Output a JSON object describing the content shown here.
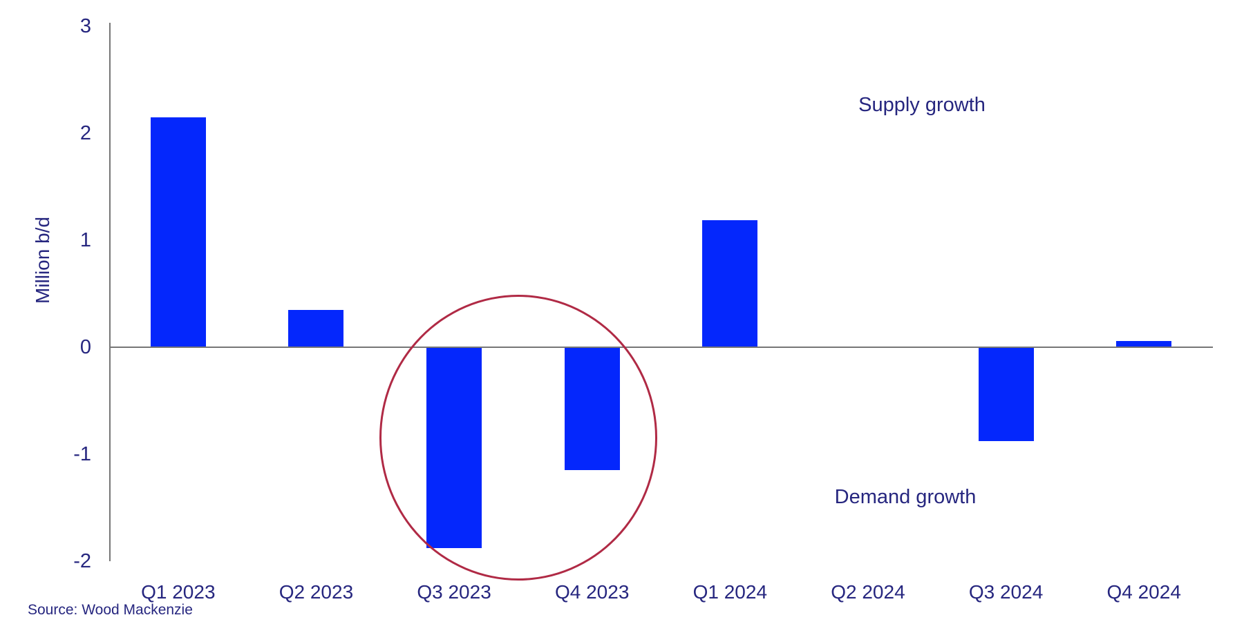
{
  "chart_data": {
    "type": "bar",
    "categories": [
      "Q1 2023",
      "Q2 2023",
      "Q3 2023",
      "Q4 2023",
      "Q1 2024",
      "Q2 2024",
      "Q3 2024",
      "Q4 2024"
    ],
    "values": [
      2.15,
      0.35,
      -1.88,
      -1.15,
      1.19,
      0,
      -0.88,
      0.06
    ],
    "title": "",
    "xlabel": "",
    "ylabel": "Million b/d",
    "ylim": [
      -2,
      3
    ],
    "yticks": [
      3,
      2,
      1,
      0,
      -1,
      -2
    ],
    "grid": false,
    "legend": "none",
    "annotations": {
      "supply_label": "Supply growth",
      "demand_label": "Demand growth",
      "highlight": {
        "shape": "ellipse",
        "around_categories": [
          "Q3 2023",
          "Q4 2023"
        ]
      }
    },
    "source": "Source: Wood Mackenzie",
    "colors": {
      "bar": "#0427FC",
      "axis": "#767676",
      "text": "#26267F",
      "circle": "#B02A45"
    }
  }
}
